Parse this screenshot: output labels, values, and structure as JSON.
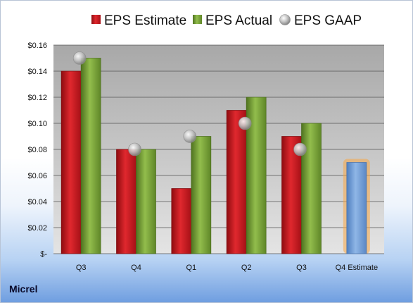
{
  "company": "Micrel",
  "chart_data": {
    "type": "bar",
    "categories": [
      "Q3",
      "Q4",
      "Q1",
      "Q2",
      "Q3",
      "Q4 Estimate"
    ],
    "series": [
      {
        "name": "EPS Estimate",
        "values": [
          0.14,
          0.08,
          0.05,
          0.11,
          0.09,
          0.07
        ]
      },
      {
        "name": "EPS Actual",
        "values": [
          0.15,
          0.08,
          0.09,
          0.12,
          0.1,
          null
        ]
      },
      {
        "name": "EPS GAAP",
        "values": [
          0.15,
          0.08,
          0.09,
          0.1,
          0.08,
          null
        ]
      }
    ],
    "y_ticks": [
      "$-",
      "$0.02",
      "$0.04",
      "$0.06",
      "$0.08",
      "$0.10",
      "$0.12",
      "$0.14",
      "$0.16"
    ],
    "ylim": [
      0,
      0.16
    ],
    "grid": true,
    "legend_position": "top",
    "colors": {
      "estimate": "#c8161d",
      "actual": "#77a033",
      "gaap": "#b0b0b0",
      "future_estimate": "#6e9bd6",
      "future_glow": "#f5a646",
      "plot_bg": "#c6c6c6"
    }
  }
}
